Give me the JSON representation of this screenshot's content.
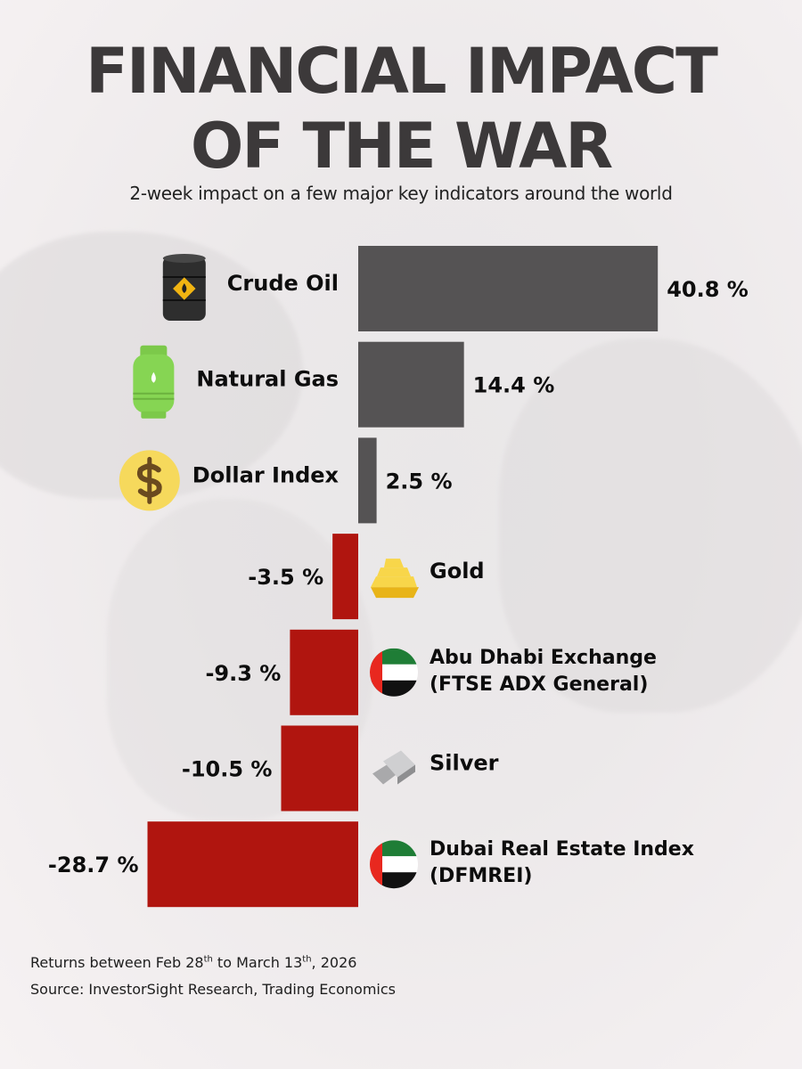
{
  "header": {
    "title_line1": "FINANCIAL IMPACT",
    "title_line2": "OF THE WAR",
    "subtitle": "2-week impact on a few major key indicators around the world"
  },
  "footer": {
    "returns_prefix": "Returns between Feb 28",
    "returns_sup1": "th",
    "returns_mid": " to March 13",
    "returns_sup2": "th",
    "returns_suffix": ", 2026",
    "source": "Source: InvestorSight Research, Trading Economics"
  },
  "colors": {
    "positive": "#555354",
    "negative": "#b0150f",
    "title": "#3c393a"
  },
  "chart_data": {
    "type": "bar",
    "orientation": "horizontal",
    "title": "FINANCIAL IMPACT OF THE WAR",
    "subtitle": "2-week impact on a few major key indicators around the world",
    "xlabel": "",
    "ylabel": "",
    "unit": "%",
    "grid": false,
    "categories": [
      [
        "Crude Oil"
      ],
      [
        "Natural Gas"
      ],
      [
        "Dollar Index"
      ],
      [
        "Gold"
      ],
      [
        "Abu Dhabi Exchange",
        "(FTSE ADX General)"
      ],
      [
        "Silver"
      ],
      [
        "Dubai Real Estate Index",
        "(DFMREI)"
      ]
    ],
    "icons": [
      "oil-barrel-icon",
      "gas-cylinder-icon",
      "dollar-coin-icon",
      "gold-bars-icon",
      "uae-flag-icon",
      "silver-bars-icon",
      "uae-flag-icon"
    ],
    "values": [
      40.8,
      14.4,
      2.5,
      -3.5,
      -9.3,
      -10.5,
      -28.7
    ],
    "value_labels": [
      "40.8 %",
      "14.4 %",
      "2.5 %",
      "-3.5 %",
      "-9.3 %",
      "-10.5 %",
      "-28.7 %"
    ]
  }
}
